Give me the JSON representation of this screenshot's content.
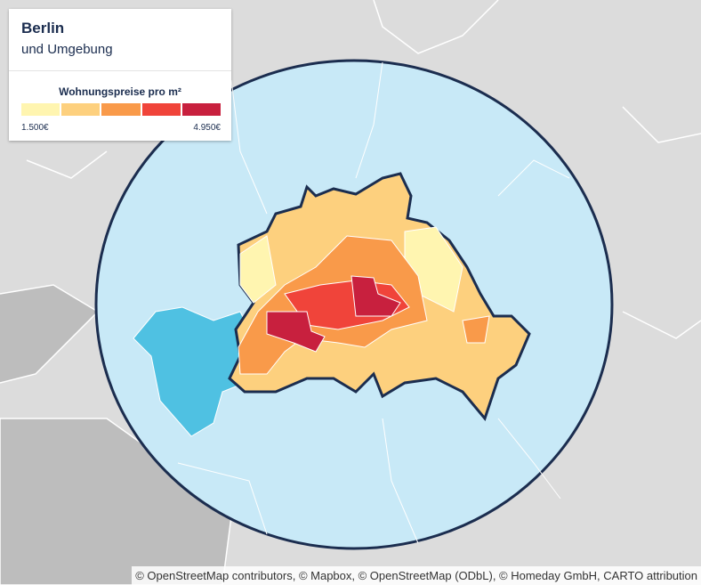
{
  "header": {
    "title": "Berlin",
    "subtitle": "und Umgebung"
  },
  "legend": {
    "title": "Wohnungspreise pro m²",
    "colors": [
      "#fff5b0",
      "#fdd07e",
      "#f99a4a",
      "#f0443a",
      "#c8203e"
    ],
    "min_label": "1.500€",
    "max_label": "4.950€"
  },
  "attribution": "© OpenStreetMap contributors, © Mapbox, © OpenStreetMap (ODbL), © Homeday GmbH, CARTO attribution"
}
